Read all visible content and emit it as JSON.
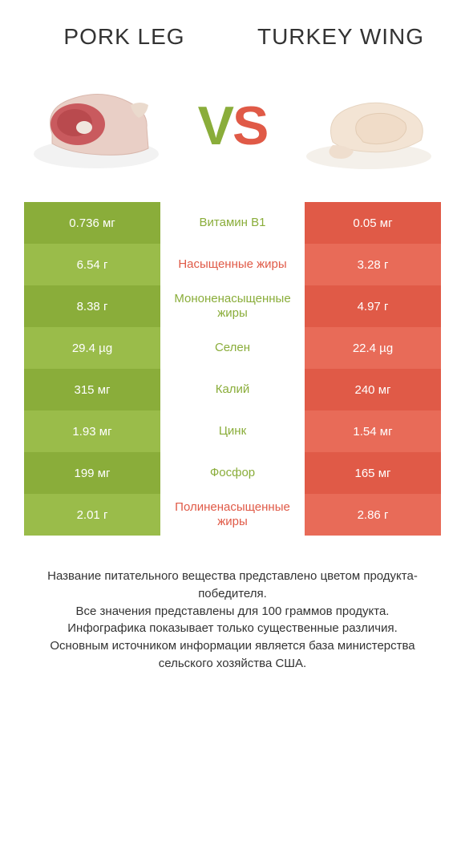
{
  "header": {
    "left_title": "Pork leg",
    "right_title": "Turkey wing",
    "vs_v": "V",
    "vs_s": "S"
  },
  "colors": {
    "left_bar": "#8aad3a",
    "left_bar_alt": "#9abc4a",
    "right_bar": "#e05a47",
    "right_bar_alt": "#e86b58",
    "mid_text_left_winner": "#8aad3a",
    "mid_text_right_winner": "#e05a47",
    "background": "#ffffff",
    "text": "#333333"
  },
  "comparison": {
    "rows": [
      {
        "label": "Витамин B1",
        "left": "0.736 мг",
        "right": "0.05 мг",
        "winner": "left"
      },
      {
        "label": "Насыщенные жиры",
        "left": "6.54 г",
        "right": "3.28 г",
        "winner": "right"
      },
      {
        "label": "Мононенасыщенные жиры",
        "left": "8.38 г",
        "right": "4.97 г",
        "winner": "left"
      },
      {
        "label": "Селен",
        "left": "29.4 µg",
        "right": "22.4 µg",
        "winner": "left"
      },
      {
        "label": "Калий",
        "left": "315 мг",
        "right": "240 мг",
        "winner": "left"
      },
      {
        "label": "Цинк",
        "left": "1.93 мг",
        "right": "1.54 мг",
        "winner": "left"
      },
      {
        "label": "Фосфор",
        "left": "199 мг",
        "right": "165 мг",
        "winner": "left"
      },
      {
        "label": "Полиненасыщенные жиры",
        "left": "2.01 г",
        "right": "2.86 г",
        "winner": "right"
      }
    ]
  },
  "notes": {
    "line1": "Название питательного вещества представлено цветом продукта-победителя.",
    "line2": "Все значения представлены для 100 граммов продукта.",
    "line3": "Инфографика показывает только существенные различия.",
    "line4": "Основным источником информации является база министерства сельского хозяйства США."
  }
}
